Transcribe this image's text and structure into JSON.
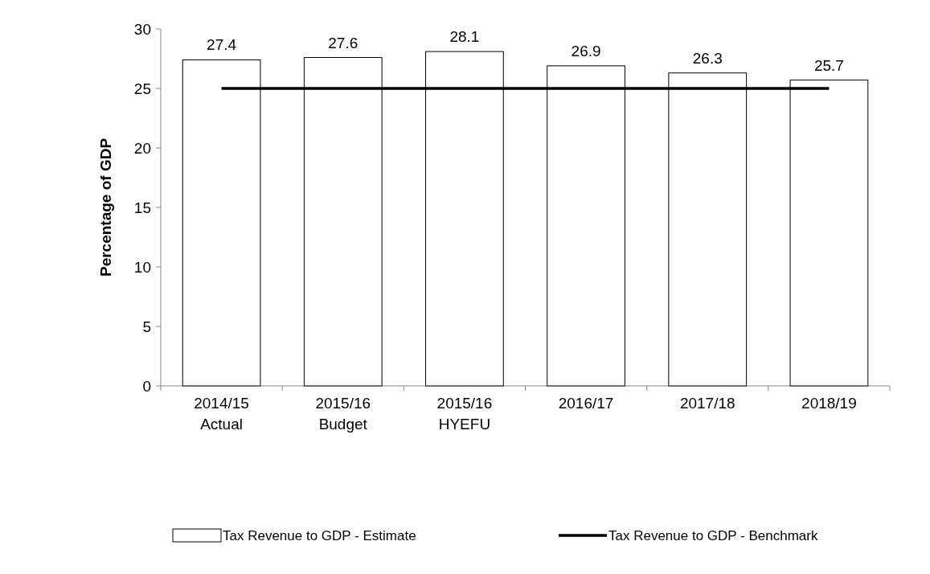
{
  "chart_data": {
    "type": "bar",
    "ylabel": "Percentage of GDP",
    "categories": [
      "2014/15\nActual",
      "2015/16\nBudget",
      "2015/16\nHYEFU",
      "2016/17",
      "2017/18",
      "2018/19"
    ],
    "series": [
      {
        "name": "Tax Revenue to GDP - Estimate",
        "color": "#ffffff",
        "values": [
          27.4,
          27.6,
          28.1,
          26.9,
          26.3,
          25.7
        ],
        "data_labels": true
      },
      {
        "name": "Tax Revenue to GDP - Benchmark",
        "type": "line",
        "color": "#000000",
        "values": [
          25,
          25,
          25,
          25,
          25,
          25
        ]
      }
    ],
    "ylim": [
      0,
      30
    ],
    "yticks": [
      0,
      5,
      10,
      15,
      20,
      25,
      30
    ],
    "legend": "bottom"
  }
}
